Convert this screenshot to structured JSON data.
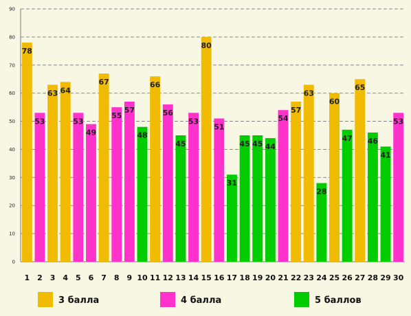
{
  "chart_data": {
    "type": "bar",
    "categories": [
      "1",
      "2",
      "3",
      "4",
      "5",
      "6",
      "7",
      "8",
      "9",
      "10",
      "11",
      "12",
      "13",
      "14",
      "15",
      "16",
      "17",
      "18",
      "19",
      "20",
      "21",
      "22",
      "23",
      "24",
      "25",
      "26",
      "27",
      "28",
      "29",
      "30"
    ],
    "values": [
      78,
      53,
      63,
      64,
      53,
      49,
      67,
      55,
      57,
      48,
      66,
      56,
      45,
      53,
      80,
      51,
      31,
      45,
      45,
      44,
      54,
      57,
      63,
      28,
      60,
      47,
      65,
      46,
      41,
      53
    ],
    "groups": [
      0,
      1,
      0,
      0,
      1,
      1,
      0,
      1,
      1,
      2,
      0,
      1,
      2,
      1,
      0,
      1,
      2,
      2,
      2,
      2,
      1,
      0,
      0,
      2,
      0,
      2,
      0,
      2,
      2,
      1
    ],
    "legend": [
      {
        "label": "3 балла",
        "color": "#f0bb00"
      },
      {
        "label": "4 балла",
        "color": "#ff33cc"
      },
      {
        "label": "5 баллов",
        "color": "#00cc00"
      }
    ],
    "legend_position": "bottom",
    "ylim": [
      0,
      90
    ],
    "yticks": [
      0,
      10,
      20,
      30,
      40,
      50,
      60,
      70,
      80,
      90
    ],
    "grid": true,
    "title": "",
    "xlabel": "",
    "ylabel": ""
  }
}
